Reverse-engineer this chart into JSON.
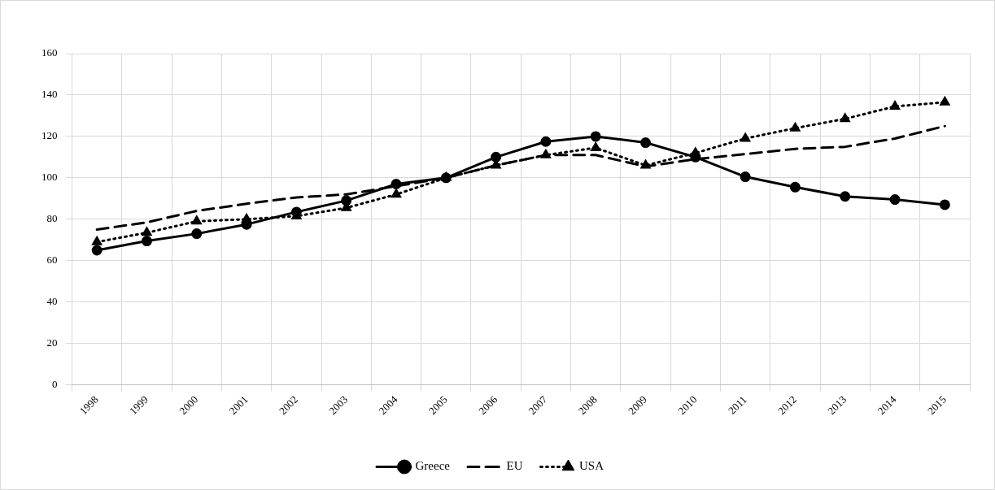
{
  "chart_data": {
    "type": "line",
    "categories": [
      "1998",
      "1999",
      "2000",
      "2001",
      "2002",
      "2003",
      "2004",
      "2005",
      "2006",
      "2007",
      "2008",
      "2009",
      "2010",
      "2011",
      "2012",
      "2013",
      "2014",
      "2015"
    ],
    "series": [
      {
        "name": "Greece",
        "color": "#000000",
        "marker": "circle",
        "line_style": "solid",
        "values": [
          65,
          69.5,
          73,
          77.5,
          83.5,
          89,
          97,
          100,
          110,
          117.5,
          120,
          117,
          110,
          100.5,
          95.5,
          91,
          89.5,
          87
        ]
      },
      {
        "name": "EU",
        "color": "#000000",
        "marker": "none",
        "line_style": "dashed",
        "values": [
          75,
          78.5,
          84,
          87.5,
          90.5,
          92,
          96,
          100,
          106,
          111,
          111,
          105.5,
          109,
          111.5,
          114,
          115,
          119,
          125
        ]
      },
      {
        "name": "USA",
        "color": "#000000",
        "marker": "triangle",
        "line_style": "dotted",
        "values": [
          69,
          73.5,
          79,
          80,
          81.5,
          85.5,
          92,
          100,
          106,
          111,
          114.5,
          106,
          112,
          119,
          124,
          128.5,
          134.5,
          136.5
        ]
      }
    ],
    "ylim": [
      0,
      160
    ],
    "yticks": [
      0,
      20,
      40,
      60,
      80,
      100,
      120,
      140,
      160
    ],
    "grid": true,
    "legend": "bottom"
  }
}
